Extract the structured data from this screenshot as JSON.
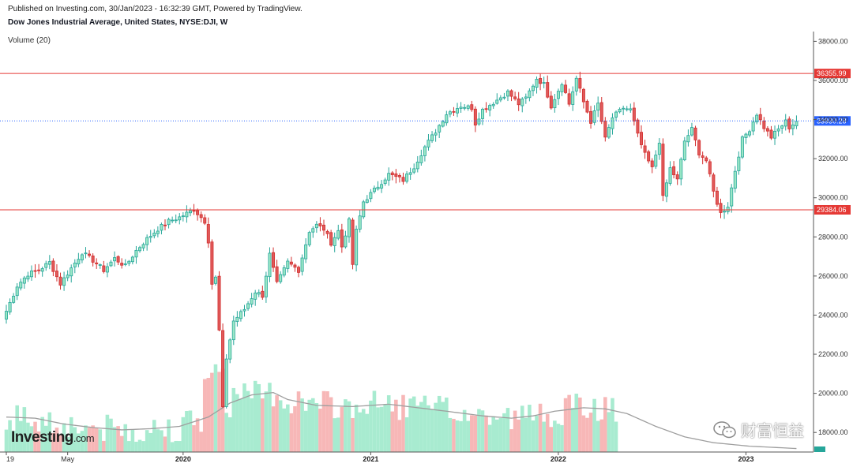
{
  "header": {
    "published": "Published on Investing.com, 30/Jan/2023 - 16:32:39 GMT, Powered by TradingView.",
    "title": "Dow Jones Industrial Average, United States, NYSE:DJI, W",
    "volume_label": "Volume (20)"
  },
  "branding": {
    "logo_main": "Investing",
    "logo_suffix": ".com",
    "watermark": "财富恒益"
  },
  "colors": {
    "up": "#26a69a",
    "up_fill": "#9be7c6",
    "down": "#d32f2f",
    "down_fill": "#e05a5a",
    "vol_up": "#a8ebd0",
    "vol_down": "#f7b7b7",
    "hline": "#e53935",
    "current_line": "#2962ff",
    "vol_ma": "#9e9e9e"
  },
  "chart_data": {
    "type": "candlestick",
    "title": "Dow Jones Industrial Average, United States, NYSE:DJI, W",
    "ylim": [
      17000,
      38500
    ],
    "y_ticks": [
      18000,
      20000,
      22000,
      24000,
      26000,
      28000,
      30000,
      32000,
      34000,
      36000,
      38000
    ],
    "y_tick_labels": [
      "18000.00",
      "20000.00",
      "22000.00",
      "24000.00",
      "26000.00",
      "28000.00",
      "30000.00",
      "32000.00",
      "34000.00",
      "36000.00",
      "38000.00"
    ],
    "x_labels": [
      "19",
      "May",
      "2020",
      "2021",
      "2022",
      "2023"
    ],
    "x_label_positions": [
      0,
      17,
      49,
      101,
      153,
      205
    ],
    "horizontal_lines": [
      {
        "value": 36355.99,
        "label": "36355.99"
      },
      {
        "value": 29384.06,
        "label": "29384.06"
      }
    ],
    "current_price": {
      "value": 33930.28,
      "label": "33930.28"
    },
    "close_anchors": [
      [
        0,
        24200
      ],
      [
        3,
        25500
      ],
      [
        6,
        26100
      ],
      [
        9,
        26300
      ],
      [
        12,
        26700
      ],
      [
        15,
        25600
      ],
      [
        18,
        26400
      ],
      [
        21,
        27200
      ],
      [
        24,
        26800
      ],
      [
        27,
        26300
      ],
      [
        30,
        26900
      ],
      [
        33,
        26500
      ],
      [
        36,
        27300
      ],
      [
        39,
        27900
      ],
      [
        42,
        28400
      ],
      [
        45,
        28800
      ],
      [
        48,
        29000
      ],
      [
        52,
        29400
      ],
      [
        55,
        28800
      ],
      [
        56,
        27800
      ],
      [
        57,
        25600
      ],
      [
        58,
        25900
      ],
      [
        59,
        23200
      ],
      [
        60,
        19200
      ],
      [
        61,
        21800
      ],
      [
        63,
        23700
      ],
      [
        66,
        24300
      ],
      [
        69,
        25200
      ],
      [
        71,
        25000
      ],
      [
        73,
        27100
      ],
      [
        75,
        25600
      ],
      [
        78,
        26700
      ],
      [
        81,
        26300
      ],
      [
        84,
        28300
      ],
      [
        86,
        28600
      ],
      [
        88,
        28400
      ],
      [
        90,
        27700
      ],
      [
        92,
        28300
      ],
      [
        93,
        27500
      ],
      [
        95,
        28800
      ],
      [
        96,
        26600
      ],
      [
        97,
        28300
      ],
      [
        99,
        29800
      ],
      [
        102,
        30400
      ],
      [
        106,
        31200
      ],
      [
        110,
        30900
      ],
      [
        113,
        31600
      ],
      [
        116,
        32600
      ],
      [
        119,
        33400
      ],
      [
        122,
        34300
      ],
      [
        126,
        34700
      ],
      [
        129,
        34600
      ],
      [
        130,
        33800
      ],
      [
        132,
        34500
      ],
      [
        136,
        35000
      ],
      [
        139,
        35400
      ],
      [
        142,
        34800
      ],
      [
        144,
        35100
      ],
      [
        147,
        36100
      ],
      [
        149,
        35800
      ],
      [
        151,
        34700
      ],
      [
        154,
        35900
      ],
      [
        156,
        34800
      ],
      [
        158,
        36100
      ],
      [
        160,
        34900
      ],
      [
        162,
        33900
      ],
      [
        164,
        34800
      ],
      [
        166,
        33000
      ],
      [
        168,
        34100
      ],
      [
        171,
        34600
      ],
      [
        173,
        34500
      ],
      [
        175,
        33200
      ],
      [
        177,
        32200
      ],
      [
        179,
        31500
      ],
      [
        181,
        32900
      ],
      [
        182,
        30000
      ],
      [
        184,
        31500
      ],
      [
        186,
        30900
      ],
      [
        188,
        32900
      ],
      [
        190,
        33500
      ],
      [
        192,
        32300
      ],
      [
        194,
        31900
      ],
      [
        196,
        30300
      ],
      [
        198,
        29200
      ],
      [
        200,
        29600
      ],
      [
        202,
        31400
      ],
      [
        204,
        33000
      ],
      [
        206,
        33500
      ],
      [
        208,
        34300
      ],
      [
        210,
        33600
      ],
      [
        212,
        33100
      ],
      [
        214,
        33500
      ],
      [
        216,
        33900
      ],
      [
        217,
        33600
      ],
      [
        219,
        33930
      ]
    ],
    "volume_ma": [
      [
        0,
        13000
      ],
      [
        8,
        12900
      ],
      [
        16,
        12400
      ],
      [
        24,
        12100
      ],
      [
        32,
        11900
      ],
      [
        40,
        12000
      ],
      [
        48,
        12200
      ],
      [
        56,
        13000
      ],
      [
        62,
        14200
      ],
      [
        68,
        14900
      ],
      [
        74,
        15100
      ],
      [
        78,
        14500
      ],
      [
        86,
        14000
      ],
      [
        96,
        13900
      ],
      [
        106,
        14100
      ],
      [
        114,
        13800
      ],
      [
        122,
        13500
      ],
      [
        132,
        13100
      ],
      [
        140,
        12900
      ],
      [
        146,
        13100
      ],
      [
        152,
        13500
      ],
      [
        160,
        13800
      ],
      [
        166,
        13700
      ],
      [
        172,
        13300
      ],
      [
        180,
        12200
      ],
      [
        188,
        11300
      ],
      [
        196,
        10800
      ],
      [
        206,
        10500
      ],
      [
        219,
        10300
      ]
    ],
    "volume_ylim": [
      10000,
      19000
    ],
    "volume_bars_visible": 170
  }
}
